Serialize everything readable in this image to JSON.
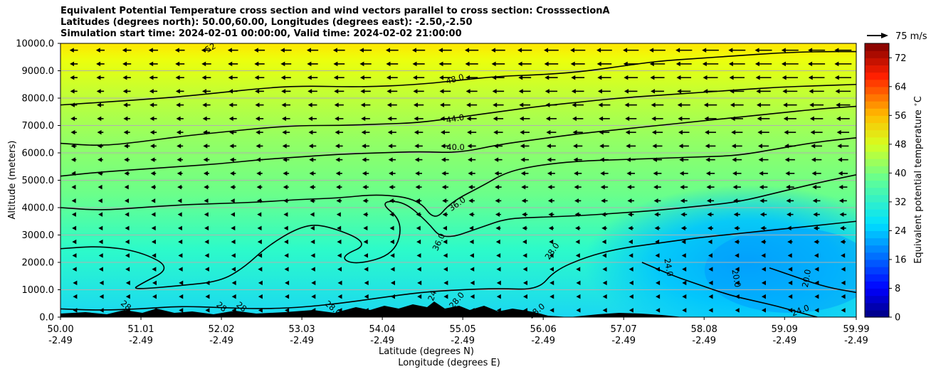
{
  "chart_data": {
    "type": "heatmap",
    "title_lines": [
      "Equivalent Potential Temperature cross section and wind vectors parallel to cross section: CrosssectionA",
      "Latitudes (degrees north): 50.00,60.00, Longitudes (degrees east): -2.50,-2.50",
      "Simulation start time: 2024-02-01 00:00:00, Valid time: 2024-02-02 21:00:00"
    ],
    "ylabel": "Altitude (meters)",
    "xlabel_lat": "Latitude (degrees N)",
    "xlabel_lon": "Longitude (degrees E)",
    "ylim": [
      0,
      10000
    ],
    "y_ticks": [
      "0.0",
      "1000.0",
      "2000.0",
      "3000.0",
      "4000.0",
      "5000.0",
      "6000.0",
      "7000.0",
      "8000.0",
      "9000.0",
      "10000.0"
    ],
    "y_tick_values": [
      0,
      1000,
      2000,
      3000,
      4000,
      5000,
      6000,
      7000,
      8000,
      9000,
      10000
    ],
    "x_ticks": [
      {
        "lat": "50.00",
        "lon": "-2.49"
      },
      {
        "lat": "51.01",
        "lon": "-2.49"
      },
      {
        "lat": "52.02",
        "lon": "-2.49"
      },
      {
        "lat": "53.03",
        "lon": "-2.49"
      },
      {
        "lat": "54.04",
        "lon": "-2.49"
      },
      {
        "lat": "55.05",
        "lon": "-2.49"
      },
      {
        "lat": "56.06",
        "lon": "-2.49"
      },
      {
        "lat": "57.07",
        "lon": "-2.49"
      },
      {
        "lat": "58.08",
        "lon": "-2.49"
      },
      {
        "lat": "59.09",
        "lon": "-2.49"
      },
      {
        "lat": "59.99",
        "lon": "-2.49"
      }
    ],
    "xlim": [
      50.0,
      59.99
    ],
    "colorbar": {
      "label": "Equivalent potential temperature $^\\circ$C",
      "ticks": [
        "0",
        "8",
        "16",
        "24",
        "32",
        "40",
        "48",
        "56",
        "64",
        "72"
      ],
      "range": [
        0,
        76
      ],
      "step": 2,
      "colormap": "jet"
    },
    "quiver_key": {
      "label": "75 m/s"
    },
    "contour_labels": [
      "52",
      "48.0",
      "44.0",
      "40.0",
      "36.0",
      "36.0",
      "28.0",
      "24.0",
      "20.0",
      "20.0",
      "24.0",
      "28",
      "28",
      "28",
      "28.0",
      "24",
      "28.0",
      "28.0"
    ],
    "contours": [
      {
        "level": 48,
        "points": [
          [
            50.0,
            7750
          ],
          [
            50.8,
            7900
          ],
          [
            51.5,
            8050
          ],
          [
            52.0,
            8200
          ],
          [
            52.5,
            8350
          ],
          [
            53.0,
            8450
          ],
          [
            53.8,
            8400
          ],
          [
            54.5,
            8500
          ],
          [
            55.0,
            8650
          ],
          [
            55.5,
            8800
          ],
          [
            56.0,
            8850
          ],
          [
            56.5,
            8950
          ],
          [
            57.0,
            9150
          ],
          [
            57.5,
            9350
          ],
          [
            58.0,
            9450
          ],
          [
            58.5,
            9550
          ],
          [
            59.0,
            9650
          ],
          [
            59.5,
            9700
          ],
          [
            59.99,
            9700
          ]
        ]
      },
      {
        "level": 44,
        "points": [
          [
            50.0,
            6350
          ],
          [
            50.5,
            6250
          ],
          [
            51.0,
            6400
          ],
          [
            51.5,
            6600
          ],
          [
            52.0,
            6750
          ],
          [
            52.5,
            6900
          ],
          [
            53.0,
            7000
          ],
          [
            53.5,
            7000
          ],
          [
            54.0,
            7050
          ],
          [
            54.5,
            7100
          ],
          [
            55.0,
            7300
          ],
          [
            55.5,
            7500
          ],
          [
            56.0,
            7700
          ],
          [
            56.5,
            7850
          ],
          [
            57.0,
            8000
          ],
          [
            57.5,
            8100
          ],
          [
            58.0,
            8200
          ],
          [
            58.5,
            8300
          ],
          [
            59.0,
            8400
          ],
          [
            59.5,
            8450
          ],
          [
            59.99,
            8500
          ]
        ]
      },
      {
        "level": 40,
        "points": [
          [
            50.0,
            5150
          ],
          [
            50.5,
            5300
          ],
          [
            51.0,
            5400
          ],
          [
            51.5,
            5500
          ],
          [
            52.0,
            5600
          ],
          [
            52.5,
            5750
          ],
          [
            53.0,
            5850
          ],
          [
            53.5,
            5950
          ],
          [
            54.0,
            6000
          ],
          [
            54.5,
            6050
          ],
          [
            55.0,
            6000
          ],
          [
            55.5,
            6300
          ],
          [
            56.0,
            6500
          ],
          [
            56.5,
            6700
          ],
          [
            57.0,
            6850
          ],
          [
            57.5,
            7000
          ],
          [
            58.0,
            7150
          ],
          [
            58.5,
            7300
          ],
          [
            59.0,
            7450
          ],
          [
            59.5,
            7600
          ],
          [
            59.99,
            7700
          ]
        ]
      },
      {
        "level": 36,
        "points": [
          [
            50.0,
            4000
          ],
          [
            50.5,
            3900
          ],
          [
            51.0,
            4000
          ],
          [
            51.5,
            4100
          ],
          [
            52.0,
            4150
          ],
          [
            52.5,
            4200
          ],
          [
            53.0,
            4300
          ],
          [
            53.5,
            4350
          ],
          [
            54.0,
            4500
          ],
          [
            54.5,
            4300
          ],
          [
            54.7,
            3500
          ],
          [
            54.9,
            4200
          ],
          [
            55.3,
            4800
          ],
          [
            55.6,
            5300
          ],
          [
            56.0,
            5550
          ],
          [
            56.5,
            5700
          ],
          [
            57.0,
            5750
          ],
          [
            57.5,
            5800
          ],
          [
            58.0,
            5850
          ],
          [
            58.5,
            5900
          ],
          [
            59.0,
            6150
          ],
          [
            59.5,
            6400
          ],
          [
            59.99,
            6550
          ]
        ]
      },
      {
        "level": 32,
        "points": [
          [
            50.0,
            2500
          ],
          [
            50.5,
            2600
          ],
          [
            51.0,
            2400
          ],
          [
            51.4,
            1800
          ],
          [
            51.0,
            1200
          ],
          [
            50.9,
            1000
          ],
          [
            51.5,
            1150
          ],
          [
            52.0,
            1300
          ],
          [
            52.3,
            1800
          ],
          [
            52.6,
            2600
          ],
          [
            53.0,
            3300
          ],
          [
            53.3,
            3400
          ],
          [
            53.9,
            2700
          ],
          [
            53.5,
            2200
          ],
          [
            53.7,
            1900
          ],
          [
            54.2,
            2300
          ],
          [
            54.3,
            3500
          ],
          [
            54.0,
            4200
          ],
          [
            54.3,
            4250
          ],
          [
            54.6,
            3500
          ],
          [
            54.8,
            2800
          ],
          [
            55.3,
            3300
          ],
          [
            55.6,
            3600
          ],
          [
            56.0,
            3650
          ],
          [
            56.5,
            3700
          ],
          [
            57.0,
            3800
          ],
          [
            57.5,
            3900
          ],
          [
            58.0,
            4050
          ],
          [
            58.5,
            4200
          ],
          [
            59.0,
            4550
          ],
          [
            59.5,
            4900
          ],
          [
            59.99,
            5200
          ]
        ]
      },
      {
        "level": 28,
        "points": [
          [
            50.0,
            300
          ],
          [
            50.5,
            250
          ],
          [
            51.0,
            300
          ],
          [
            51.5,
            400
          ],
          [
            52.0,
            350
          ],
          [
            52.5,
            300
          ],
          [
            53.0,
            350
          ],
          [
            53.5,
            500
          ],
          [
            54.0,
            700
          ],
          [
            54.5,
            900
          ],
          [
            55.0,
            1000
          ],
          [
            55.5,
            1050
          ],
          [
            56.0,
            1000
          ],
          [
            56.2,
            1700
          ],
          [
            56.6,
            2200
          ],
          [
            57.0,
            2500
          ],
          [
            57.5,
            2700
          ],
          [
            58.0,
            2900
          ],
          [
            58.5,
            3050
          ],
          [
            59.0,
            3200
          ],
          [
            59.5,
            3350
          ],
          [
            59.99,
            3500
          ]
        ]
      },
      {
        "level": 24,
        "points": [
          [
            57.3,
            2000
          ],
          [
            57.7,
            1500
          ],
          [
            58.0,
            1200
          ],
          [
            58.4,
            800
          ],
          [
            58.7,
            600
          ],
          [
            59.0,
            400
          ],
          [
            59.3,
            150
          ],
          [
            59.5,
            0
          ]
        ]
      },
      {
        "level": 20,
        "points": [
          [
            58.9,
            1800
          ],
          [
            59.2,
            1500
          ],
          [
            59.6,
            1100
          ],
          [
            59.99,
            900
          ]
        ]
      }
    ]
  }
}
